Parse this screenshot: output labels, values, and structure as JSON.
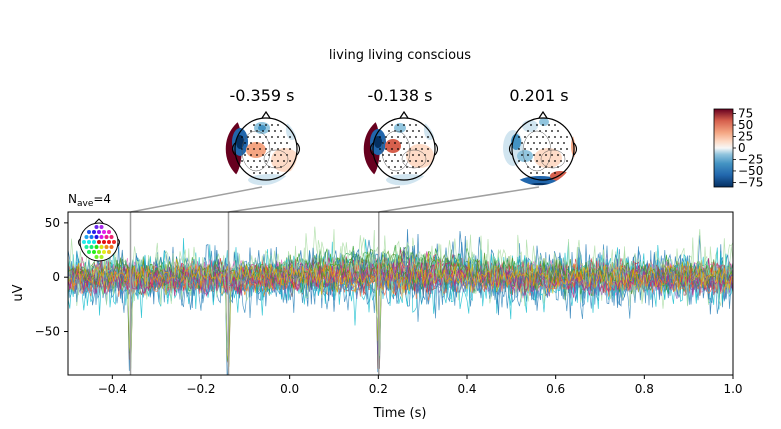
{
  "figure": {
    "suptitle": "living living conscious"
  },
  "chart_data": {
    "type": "line",
    "title": "living living conscious",
    "xlabel": "Time (s)",
    "ylabel": "uV",
    "xlim": [
      -0.5,
      1.0
    ],
    "ylim": [
      -90,
      60
    ],
    "x_ticks": [
      -0.4,
      -0.2,
      0.0,
      0.2,
      0.4,
      0.6,
      0.8,
      1.0
    ],
    "x_tick_labels": [
      "−0.4",
      "−0.2",
      "0.0",
      "0.2",
      "0.4",
      "0.6",
      "0.8",
      "1.0"
    ],
    "y_ticks": [
      50,
      0,
      -50
    ],
    "y_tick_labels": [
      "50",
      "0",
      "−50"
    ],
    "nave_label": "N",
    "nave_sub": "ave",
    "nave_value": "=4",
    "topomap_times": [
      -0.359,
      -0.138,
      0.201
    ],
    "topomap_titles": [
      "-0.359 s",
      "-0.138 s",
      "0.201 s"
    ],
    "colorbar": {
      "range": [
        -85,
        85
      ],
      "ticks": [
        75,
        50,
        25,
        0,
        -25,
        -50,
        -75
      ],
      "tick_labels": [
        "75",
        "50",
        "25",
        "0",
        "−25",
        "−50",
        "−75"
      ],
      "cmap": "RdBu_r"
    },
    "grid": false,
    "legend": "none",
    "series_description": "Butterfly plot of many EEG channels, colored by sensor position; mostly within ±25 uV with sharp negative spikes near -0.359 s, -0.138 s and 0.201 s."
  },
  "colors": {
    "axis": "#000000",
    "connector": "#a0a0a0",
    "channels": [
      "#1f77b4",
      "#2ca02c",
      "#d62728",
      "#9467bd",
      "#ff7f0e",
      "#17becf",
      "#e377c2",
      "#8c564b",
      "#bcbd22",
      "#1a9850",
      "#3288bd",
      "#d53e4f",
      "#66c2a5",
      "#f46d43",
      "#5e4fa2",
      "#abdda4",
      "#c51b7d",
      "#4d9221",
      "#7570b3",
      "#e6ab02"
    ]
  }
}
